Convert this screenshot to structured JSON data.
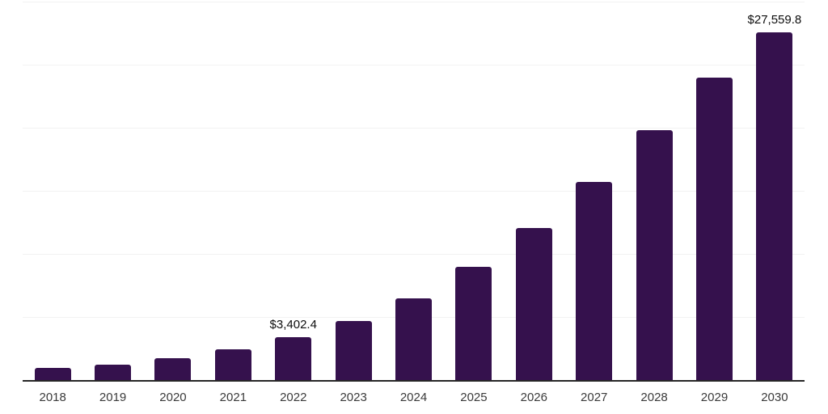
{
  "chart_data": {
    "type": "bar",
    "title": "",
    "xlabel": "",
    "ylabel": "",
    "categories": [
      "2018",
      "2019",
      "2020",
      "2021",
      "2022",
      "2023",
      "2024",
      "2025",
      "2026",
      "2027",
      "2028",
      "2029",
      "2030"
    ],
    "values": [
      990,
      1250,
      1760,
      2430,
      3402.4,
      4670,
      6480,
      9000,
      12080,
      15700,
      19800,
      23980,
      27559.8
    ],
    "data_labels": {
      "2022": "$3,402.4",
      "2030": "$27,559.8"
    },
    "ylim": [
      0,
      30000
    ],
    "grid_step": 5000,
    "grid": true,
    "legend": false,
    "bar_color": "#35114d",
    "gridline_color": "#f2f2f2",
    "axis_color": "#262626",
    "data_label_color": "#0d0d0d",
    "tick_label_color": "#3a3a3a",
    "background_color": "#ffffff"
  }
}
